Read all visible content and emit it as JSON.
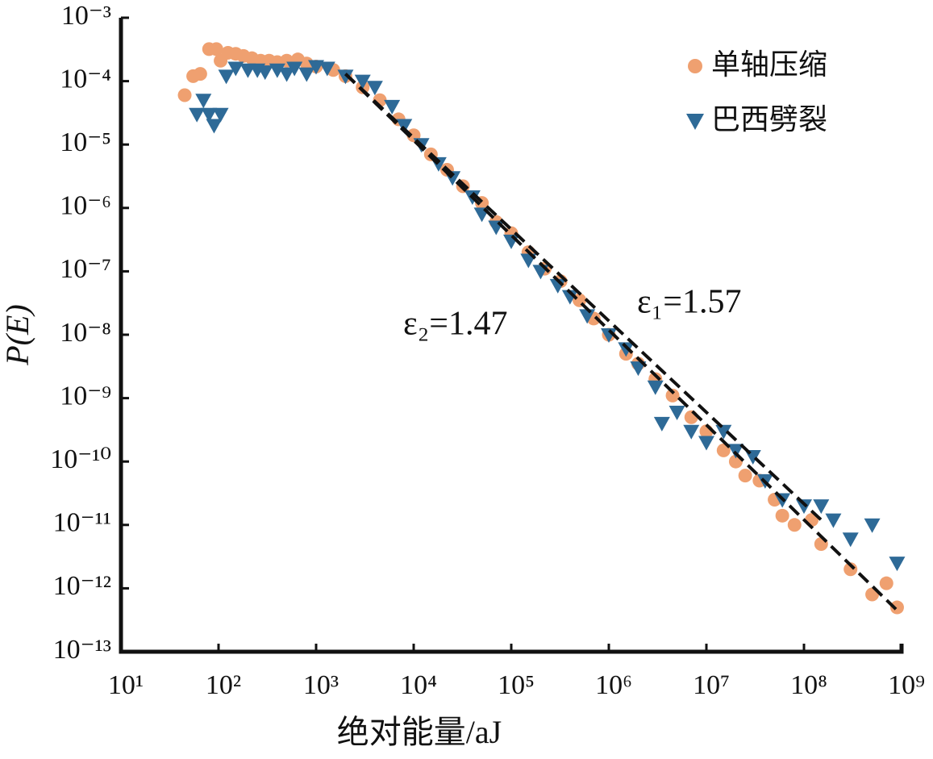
{
  "chart_data": {
    "type": "scatter",
    "xlabel": "绝对能量/aJ",
    "ylabel": "P(E)",
    "log_x": true,
    "log_y": true,
    "xlim": [
      10,
      1000000000.0
    ],
    "ylim": [
      1e-13,
      0.001
    ],
    "xticks": [
      {
        "value": 10,
        "label": "10¹"
      },
      {
        "value": 100,
        "label": "10²"
      },
      {
        "value": 1000,
        "label": "10³"
      },
      {
        "value": 10000.0,
        "label": "10⁴"
      },
      {
        "value": 100000.0,
        "label": "10⁵"
      },
      {
        "value": 1000000.0,
        "label": "10⁶"
      },
      {
        "value": 10000000.0,
        "label": "10⁷"
      },
      {
        "value": 100000000.0,
        "label": "10⁸"
      },
      {
        "value": 1000000000.0,
        "label": "10⁹"
      }
    ],
    "yticks": [
      {
        "value": 0.001,
        "label": "10⁻³"
      },
      {
        "value": 0.0001,
        "label": "10⁻⁴"
      },
      {
        "value": 1e-05,
        "label": "10⁻⁵"
      },
      {
        "value": 1e-06,
        "label": "10⁻⁶"
      },
      {
        "value": 1e-07,
        "label": "10⁻⁷"
      },
      {
        "value": 1e-08,
        "label": "10⁻⁸"
      },
      {
        "value": 1e-09,
        "label": "10⁻⁹"
      },
      {
        "value": 1e-10,
        "label": "10⁻¹⁰"
      },
      {
        "value": 1e-11,
        "label": "10⁻¹¹"
      },
      {
        "value": 1e-12,
        "label": "10⁻¹²"
      },
      {
        "value": 1e-13,
        "label": "10⁻¹³"
      }
    ],
    "legend": "top-right",
    "series": [
      {
        "name": "单轴压缩",
        "color": "#efa070",
        "marker": "circle",
        "x": [
          45,
          55,
          65,
          80,
          95,
          105,
          125,
          150,
          180,
          220,
          270,
          330,
          400,
          500,
          650,
          800,
          1000,
          1500,
          2000,
          3000,
          4500,
          7000,
          10000.0,
          15000.0,
          22000.0,
          32000.0,
          50000.0,
          70000.0,
          100000.0,
          150000.0,
          220000.0,
          320000.0,
          500000.0,
          700000.0,
          1000000.0,
          1500000.0,
          2000000.0,
          3000000.0,
          4500000.0,
          7000000.0,
          10000000.0,
          15000000.0,
          20000000.0,
          25000000.0,
          35000000.0,
          50000000.0,
          60000000.0,
          80000000.0,
          120000000.0,
          150000000.0,
          300000000.0,
          500000000.0,
          700000000.0,
          900000000.0
        ],
        "values": [
          6e-05,
          0.00012,
          0.00013,
          0.00032,
          0.00032,
          0.00021,
          0.00028,
          0.00027,
          0.00025,
          0.00023,
          0.00021,
          0.00021,
          0.0002,
          0.00021,
          0.00022,
          0.00019,
          0.00017,
          0.00015,
          0.00012,
          8e-05,
          5e-05,
          2.5e-05,
          1.4e-05,
          7e-06,
          4e-06,
          2.2e-06,
          1.2e-06,
          6e-07,
          4e-07,
          2e-07,
          1.1e-07,
          7e-08,
          3.5e-08,
          1.8e-08,
          1e-08,
          5e-09,
          3.5e-09,
          2e-09,
          1.1e-09,
          5e-10,
          3e-10,
          1.5e-10,
          1e-10,
          6e-11,
          5e-11,
          2.5e-11,
          1.4e-11,
          1e-11,
          1.2e-11,
          5e-12,
          2e-12,
          8e-13,
          1.2e-12,
          5e-13
        ]
      },
      {
        "name": "巴西劈裂",
        "color": "#2e6a97",
        "marker": "triangle",
        "x": [
          60,
          70,
          80,
          90,
          105,
          120,
          150,
          200,
          250,
          300,
          400,
          500,
          600,
          800,
          1000,
          1300,
          2000,
          3000,
          4000,
          6000,
          8000,
          12000.0,
          18000.0,
          25000.0,
          40000.0,
          50000.0,
          70000.0,
          100000.0,
          150000.0,
          200000.0,
          300000.0,
          400000.0,
          600000.0,
          1000000.0,
          1500000.0,
          2000000.0,
          3000000.0,
          3500000.0,
          5000000.0,
          7000000.0,
          10000000.0,
          15000000.0,
          20000000.0,
          30000000.0,
          40000000.0,
          60000000.0,
          100000000.0,
          150000000.0,
          200000000.0,
          300000000.0,
          500000000.0,
          900000000.0
        ],
        "values": [
          3e-05,
          5e-05,
          3e-05,
          2e-05,
          3e-05,
          0.00012,
          0.00016,
          0.00015,
          0.00015,
          0.00014,
          0.00015,
          0.00013,
          0.00016,
          0.00013,
          0.00017,
          0.00016,
          0.00012,
          0.0001,
          8e-05,
          4e-05,
          2e-05,
          1e-05,
          5e-06,
          3e-06,
          1.5e-06,
          8e-07,
          5e-07,
          3e-07,
          1.5e-07,
          1e-07,
          6e-08,
          4e-08,
          2e-08,
          1e-08,
          6e-09,
          3e-09,
          1.5e-09,
          4e-10,
          6e-10,
          3e-10,
          2e-10,
          3e-10,
          1.5e-10,
          1.2e-10,
          5e-11,
          2.5e-11,
          2e-11,
          2e-11,
          1.2e-11,
          6e-12,
          1e-11,
          2.5e-12
        ]
      }
    ],
    "lines": [
      {
        "x": [
          2000,
          900000000.0
        ],
        "values": [
          0.00013,
          4.5e-13
        ],
        "color": "#111111"
      },
      {
        "x": [
          2000,
          150000000.0
        ],
        "values": [
          0.00013,
          1.2e-11
        ],
        "color": "#111111"
      }
    ],
    "annotations": [
      "ε₂=1.47",
      "ε₁=1.57"
    ]
  }
}
